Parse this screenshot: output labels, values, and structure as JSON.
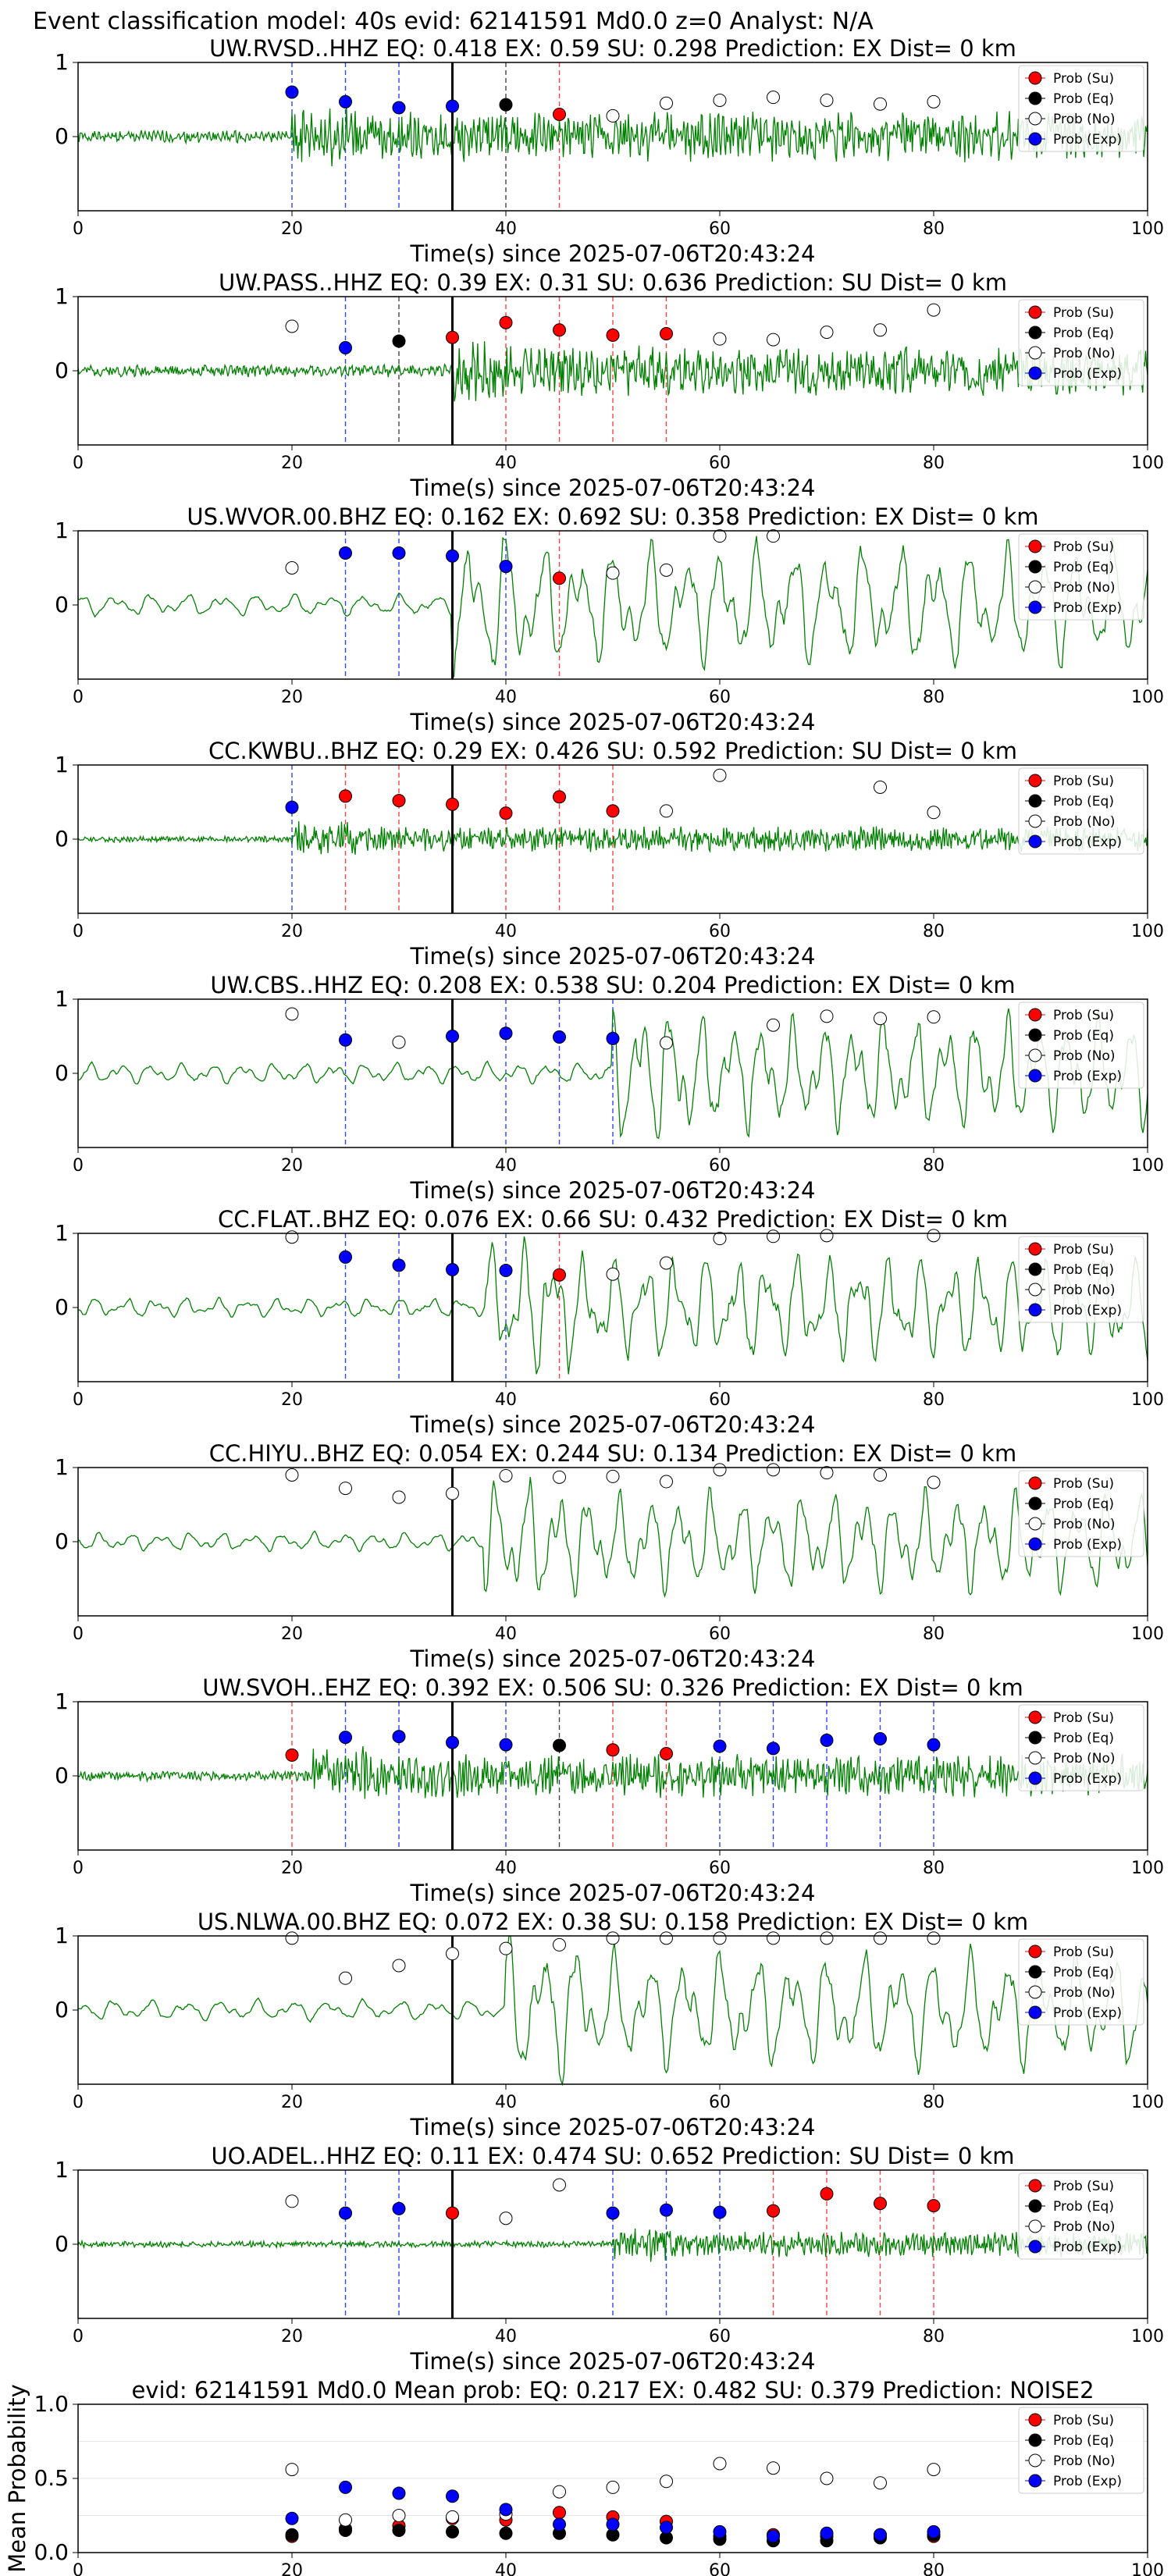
{
  "figure_title": "Event classification model: 40s evid: 62141591 Md0.0 z=0 Analyst: N/A",
  "legend_labels": [
    "Prob (Su)",
    "Prob (Eq)",
    "Prob (No)",
    "Prob (Exp)"
  ],
  "colors": {
    "su": "#ff0000",
    "eq": "#000000",
    "no": "#ffffff",
    "exp": "#0000ff",
    "trace": "#008000",
    "pick": "#000000"
  },
  "chart_data": [
    {
      "type": "line",
      "station": "UW.RVSD..HHZ",
      "title": "UW.RVSD..HHZ   EQ: 0.418  EX: 0.59  SU: 0.298   Prediction: EX    Dist= 0 km",
      "xlabel": "Time(s) since 2025-07-06T20:43:24",
      "xlim": [
        0,
        100
      ],
      "ylim": [
        -1,
        1
      ],
      "x_ticks": [
        "0",
        "20",
        "40",
        "60",
        "80",
        "100"
      ],
      "y_ticks": [
        "1",
        "0"
      ],
      "pick_time": 35,
      "waveform": {
        "style": "hf",
        "amp": 0.35,
        "onset": 20,
        "freq": 2.5,
        "seed": 1
      },
      "points": [
        {
          "t": 20,
          "cls": "exp",
          "p": 0.6
        },
        {
          "t": 25,
          "cls": "exp",
          "p": 0.47
        },
        {
          "t": 30,
          "cls": "exp",
          "p": 0.39
        },
        {
          "t": 35,
          "cls": "exp",
          "p": 0.41
        },
        {
          "t": 40,
          "cls": "eq",
          "p": 0.43
        },
        {
          "t": 45,
          "cls": "su",
          "p": 0.3
        },
        {
          "t": 50,
          "cls": "no",
          "p": 0.28
        },
        {
          "t": 55,
          "cls": "no",
          "p": 0.45
        },
        {
          "t": 60,
          "cls": "no",
          "p": 0.49
        },
        {
          "t": 65,
          "cls": "no",
          "p": 0.53
        },
        {
          "t": 70,
          "cls": "no",
          "p": 0.49
        },
        {
          "t": 75,
          "cls": "no",
          "p": 0.44
        },
        {
          "t": 80,
          "cls": "no",
          "p": 0.47
        }
      ]
    },
    {
      "type": "line",
      "station": "UW.PASS..HHZ",
      "title": "UW.PASS..HHZ   EQ: 0.39  EX: 0.31  SU: 0.636   Prediction: SU    Dist= 0 km",
      "xlabel": "Time(s) since 2025-07-06T20:43:24",
      "xlim": [
        0,
        100
      ],
      "ylim": [
        -1,
        1
      ],
      "x_ticks": [
        "0",
        "20",
        "40",
        "60",
        "80",
        "100"
      ],
      "y_ticks": [
        "1",
        "0"
      ],
      "pick_time": 35,
      "waveform": {
        "style": "hf",
        "amp": 0.35,
        "onset": 35,
        "freq": 1.6,
        "seed": 2
      },
      "points": [
        {
          "t": 20,
          "cls": "no",
          "p": 0.6
        },
        {
          "t": 25,
          "cls": "exp",
          "p": 0.31
        },
        {
          "t": 30,
          "cls": "eq",
          "p": 0.4
        },
        {
          "t": 35,
          "cls": "su",
          "p": 0.45
        },
        {
          "t": 40,
          "cls": "su",
          "p": 0.65
        },
        {
          "t": 45,
          "cls": "su",
          "p": 0.55
        },
        {
          "t": 50,
          "cls": "su",
          "p": 0.48
        },
        {
          "t": 55,
          "cls": "su",
          "p": 0.5
        },
        {
          "t": 60,
          "cls": "no",
          "p": 0.43
        },
        {
          "t": 65,
          "cls": "no",
          "p": 0.42
        },
        {
          "t": 70,
          "cls": "no",
          "p": 0.52
        },
        {
          "t": 75,
          "cls": "no",
          "p": 0.55
        },
        {
          "t": 80,
          "cls": "no",
          "p": 0.82
        }
      ]
    },
    {
      "type": "line",
      "station": "US.WVOR.00.BHZ",
      "title": "US.WVOR.00.BHZ   EQ: 0.162  EX: 0.692  SU: 0.358   Prediction: EX    Dist= 0 km",
      "xlabel": "Time(s) since 2025-07-06T20:43:24",
      "xlim": [
        0,
        100
      ],
      "ylim": [
        -1,
        1
      ],
      "x_ticks": [
        "0",
        "20",
        "40",
        "60",
        "80",
        "100"
      ],
      "y_ticks": [
        "1",
        "0"
      ],
      "pick_time": 35,
      "waveform": {
        "style": "lf",
        "amp": 0.9,
        "onset": 35,
        "freq": 0.3,
        "seed": 3
      },
      "points": [
        {
          "t": 20,
          "cls": "no",
          "p": 0.5
        },
        {
          "t": 25,
          "cls": "exp",
          "p": 0.7
        },
        {
          "t": 30,
          "cls": "exp",
          "p": 0.7
        },
        {
          "t": 35,
          "cls": "exp",
          "p": 0.66
        },
        {
          "t": 40,
          "cls": "exp",
          "p": 0.52
        },
        {
          "t": 45,
          "cls": "su",
          "p": 0.36
        },
        {
          "t": 50,
          "cls": "no",
          "p": 0.43
        },
        {
          "t": 55,
          "cls": "no",
          "p": 0.47
        },
        {
          "t": 60,
          "cls": "no",
          "p": 0.93
        },
        {
          "t": 65,
          "cls": "no",
          "p": 0.93
        }
      ]
    },
    {
      "type": "line",
      "station": "CC.KWBU..BHZ",
      "title": "CC.KWBU..BHZ   EQ: 0.29  EX: 0.426  SU: 0.592   Prediction: SU    Dist= 0 km",
      "xlabel": "Time(s) since 2025-07-06T20:43:24",
      "xlim": [
        0,
        100
      ],
      "ylim": [
        -1,
        1
      ],
      "x_ticks": [
        "0",
        "20",
        "40",
        "60",
        "80",
        "100"
      ],
      "y_ticks": [
        "1",
        "0"
      ],
      "pick_time": 35,
      "waveform": {
        "style": "hf",
        "amp": 0.18,
        "onset": 20,
        "freq": 3.5,
        "seed": 4
      },
      "points": [
        {
          "t": 20,
          "cls": "exp",
          "p": 0.43
        },
        {
          "t": 25,
          "cls": "su",
          "p": 0.58
        },
        {
          "t": 30,
          "cls": "su",
          "p": 0.52
        },
        {
          "t": 35,
          "cls": "su",
          "p": 0.47
        },
        {
          "t": 40,
          "cls": "su",
          "p": 0.35
        },
        {
          "t": 45,
          "cls": "su",
          "p": 0.57
        },
        {
          "t": 50,
          "cls": "su",
          "p": 0.38
        },
        {
          "t": 55,
          "cls": "no",
          "p": 0.38
        },
        {
          "t": 60,
          "cls": "no",
          "p": 0.86
        },
        {
          "t": 75,
          "cls": "no",
          "p": 0.7
        },
        {
          "t": 80,
          "cls": "no",
          "p": 0.36
        }
      ]
    },
    {
      "type": "line",
      "station": "UW.CBS..HHZ",
      "title": "UW.CBS..HHZ   EQ: 0.208  EX: 0.538  SU: 0.204   Prediction: EX    Dist= 0 km",
      "xlabel": "Time(s) since 2025-07-06T20:43:24",
      "xlim": [
        0,
        100
      ],
      "ylim": [
        -1,
        1
      ],
      "x_ticks": [
        "0",
        "20",
        "40",
        "60",
        "80",
        "100"
      ],
      "y_ticks": [
        "1",
        "0"
      ],
      "pick_time": 35,
      "waveform": {
        "style": "lf",
        "amp": 0.85,
        "onset": 50,
        "freq": 0.35,
        "seed": 5
      },
      "points": [
        {
          "t": 20,
          "cls": "no",
          "p": 0.8
        },
        {
          "t": 25,
          "cls": "exp",
          "p": 0.45
        },
        {
          "t": 30,
          "cls": "no",
          "p": 0.42
        },
        {
          "t": 35,
          "cls": "exp",
          "p": 0.5
        },
        {
          "t": 40,
          "cls": "exp",
          "p": 0.54
        },
        {
          "t": 45,
          "cls": "exp",
          "p": 0.49
        },
        {
          "t": 50,
          "cls": "exp",
          "p": 0.47
        },
        {
          "t": 55,
          "cls": "no",
          "p": 0.41
        },
        {
          "t": 65,
          "cls": "no",
          "p": 0.65
        },
        {
          "t": 70,
          "cls": "no",
          "p": 0.77
        },
        {
          "t": 75,
          "cls": "no",
          "p": 0.74
        },
        {
          "t": 80,
          "cls": "no",
          "p": 0.76
        }
      ]
    },
    {
      "type": "line",
      "station": "CC.FLAT..BHZ",
      "title": "CC.FLAT..BHZ   EQ: 0.076  EX: 0.66  SU: 0.432   Prediction: EX    Dist= 0 km",
      "xlabel": "Time(s) since 2025-07-06T20:43:24",
      "xlim": [
        0,
        100
      ],
      "ylim": [
        -1,
        1
      ],
      "x_ticks": [
        "0",
        "20",
        "40",
        "60",
        "80",
        "100"
      ],
      "y_ticks": [
        "1",
        "0"
      ],
      "pick_time": 35,
      "waveform": {
        "style": "lf",
        "amp": 0.8,
        "onset": 38,
        "freq": 0.35,
        "seed": 6
      },
      "points": [
        {
          "t": 20,
          "cls": "no",
          "p": 0.95
        },
        {
          "t": 25,
          "cls": "exp",
          "p": 0.68
        },
        {
          "t": 30,
          "cls": "exp",
          "p": 0.57
        },
        {
          "t": 35,
          "cls": "exp",
          "p": 0.51
        },
        {
          "t": 40,
          "cls": "exp",
          "p": 0.5
        },
        {
          "t": 45,
          "cls": "su",
          "p": 0.44
        },
        {
          "t": 50,
          "cls": "no",
          "p": 0.45
        },
        {
          "t": 55,
          "cls": "no",
          "p": 0.6
        },
        {
          "t": 60,
          "cls": "no",
          "p": 0.93
        },
        {
          "t": 65,
          "cls": "no",
          "p": 0.96
        },
        {
          "t": 70,
          "cls": "no",
          "p": 0.97
        },
        {
          "t": 80,
          "cls": "no",
          "p": 0.97
        }
      ]
    },
    {
      "type": "line",
      "station": "CC.HIYU..BHZ",
      "title": "CC.HIYU..BHZ   EQ: 0.054  EX: 0.244  SU: 0.134   Prediction: EX    Dist= 0 km",
      "xlabel": "Time(s) since 2025-07-06T20:43:24",
      "xlim": [
        0,
        100
      ],
      "ylim": [
        -1,
        1
      ],
      "x_ticks": [
        "0",
        "20",
        "40",
        "60",
        "80",
        "100"
      ],
      "y_ticks": [
        "1",
        "0"
      ],
      "pick_time": 35,
      "waveform": {
        "style": "lf",
        "amp": 0.75,
        "onset": 38,
        "freq": 0.35,
        "seed": 7
      },
      "points": [
        {
          "t": 20,
          "cls": "no",
          "p": 0.9
        },
        {
          "t": 25,
          "cls": "no",
          "p": 0.72
        },
        {
          "t": 30,
          "cls": "no",
          "p": 0.6
        },
        {
          "t": 35,
          "cls": "no",
          "p": 0.65
        },
        {
          "t": 40,
          "cls": "no",
          "p": 0.89
        },
        {
          "t": 45,
          "cls": "no",
          "p": 0.87
        },
        {
          "t": 50,
          "cls": "no",
          "p": 0.88
        },
        {
          "t": 55,
          "cls": "no",
          "p": 0.81
        },
        {
          "t": 60,
          "cls": "no",
          "p": 0.97
        },
        {
          "t": 65,
          "cls": "no",
          "p": 0.97
        },
        {
          "t": 70,
          "cls": "no",
          "p": 0.93
        },
        {
          "t": 75,
          "cls": "no",
          "p": 0.9
        },
        {
          "t": 80,
          "cls": "no",
          "p": 0.8
        }
      ]
    },
    {
      "type": "line",
      "station": "UW.SVOH..EHZ",
      "title": "UW.SVOH..EHZ   EQ: 0.392  EX: 0.506  SU: 0.326   Prediction: EX    Dist= 0 km",
      "xlabel": "Time(s) since 2025-07-06T20:43:24",
      "xlim": [
        0,
        100
      ],
      "ylim": [
        -1,
        1
      ],
      "x_ticks": [
        "0",
        "20",
        "40",
        "60",
        "80",
        "100"
      ],
      "y_ticks": [
        "1",
        "0"
      ],
      "pick_time": 35,
      "waveform": {
        "style": "hf",
        "amp": 0.3,
        "onset": 22,
        "freq": 3.0,
        "seed": 8
      },
      "points": [
        {
          "t": 20,
          "cls": "su",
          "p": 0.28
        },
        {
          "t": 25,
          "cls": "exp",
          "p": 0.52
        },
        {
          "t": 30,
          "cls": "exp",
          "p": 0.53
        },
        {
          "t": 35,
          "cls": "exp",
          "p": 0.45
        },
        {
          "t": 40,
          "cls": "exp",
          "p": 0.42
        },
        {
          "t": 45,
          "cls": "eq",
          "p": 0.41
        },
        {
          "t": 50,
          "cls": "su",
          "p": 0.35
        },
        {
          "t": 55,
          "cls": "su",
          "p": 0.3
        },
        {
          "t": 60,
          "cls": "exp",
          "p": 0.4
        },
        {
          "t": 65,
          "cls": "exp",
          "p": 0.37
        },
        {
          "t": 70,
          "cls": "exp",
          "p": 0.48
        },
        {
          "t": 75,
          "cls": "exp",
          "p": 0.5
        },
        {
          "t": 80,
          "cls": "exp",
          "p": 0.42
        }
      ]
    },
    {
      "type": "line",
      "station": "US.NLWA.00.BHZ",
      "title": "US.NLWA.00.BHZ   EQ: 0.072  EX: 0.38  SU: 0.158   Prediction: EX    Dist= 0 km",
      "xlabel": "Time(s) since 2025-07-06T20:43:24",
      "xlim": [
        0,
        100
      ],
      "ylim": [
        -1,
        1
      ],
      "x_ticks": [
        "0",
        "20",
        "40",
        "60",
        "80",
        "100"
      ],
      "y_ticks": [
        "1",
        "0"
      ],
      "pick_time": 35,
      "waveform": {
        "style": "lf",
        "amp": 0.85,
        "onset": 40,
        "freq": 0.3,
        "seed": 9
      },
      "points": [
        {
          "t": 20,
          "cls": "no",
          "p": 0.97
        },
        {
          "t": 25,
          "cls": "no",
          "p": 0.43
        },
        {
          "t": 30,
          "cls": "no",
          "p": 0.6
        },
        {
          "t": 35,
          "cls": "no",
          "p": 0.76
        },
        {
          "t": 40,
          "cls": "no",
          "p": 0.83
        },
        {
          "t": 45,
          "cls": "no",
          "p": 0.88
        },
        {
          "t": 50,
          "cls": "no",
          "p": 0.97
        },
        {
          "t": 55,
          "cls": "no",
          "p": 0.97
        },
        {
          "t": 60,
          "cls": "no",
          "p": 0.97
        },
        {
          "t": 65,
          "cls": "no",
          "p": 0.97
        },
        {
          "t": 70,
          "cls": "no",
          "p": 0.97
        },
        {
          "t": 75,
          "cls": "no",
          "p": 0.97
        },
        {
          "t": 80,
          "cls": "no",
          "p": 0.97
        }
      ]
    },
    {
      "type": "line",
      "station": "UO.ADEL..HHZ",
      "title": "UO.ADEL..HHZ   EQ: 0.11  EX: 0.474  SU: 0.652   Prediction: SU    Dist= 0 km",
      "xlabel": "Time(s) since 2025-07-06T20:43:24",
      "xlim": [
        0,
        100
      ],
      "ylim": [
        -1,
        1
      ],
      "x_ticks": [
        "0",
        "20",
        "40",
        "60",
        "80",
        "100"
      ],
      "y_ticks": [
        "1",
        "0"
      ],
      "pick_time": 35,
      "waveform": {
        "style": "hf",
        "amp": 0.18,
        "onset": 50,
        "freq": 3.0,
        "seed": 10
      },
      "points": [
        {
          "t": 20,
          "cls": "no",
          "p": 0.58
        },
        {
          "t": 25,
          "cls": "exp",
          "p": 0.42
        },
        {
          "t": 30,
          "cls": "exp",
          "p": 0.48
        },
        {
          "t": 35,
          "cls": "su",
          "p": 0.42
        },
        {
          "t": 40,
          "cls": "no",
          "p": 0.35
        },
        {
          "t": 45,
          "cls": "no",
          "p": 0.8
        },
        {
          "t": 50,
          "cls": "exp",
          "p": 0.42
        },
        {
          "t": 55,
          "cls": "exp",
          "p": 0.46
        },
        {
          "t": 60,
          "cls": "exp",
          "p": 0.43
        },
        {
          "t": 65,
          "cls": "su",
          "p": 0.45
        },
        {
          "t": 70,
          "cls": "su",
          "p": 0.68
        },
        {
          "t": 75,
          "cls": "su",
          "p": 0.55
        },
        {
          "t": 80,
          "cls": "su",
          "p": 0.52
        }
      ]
    },
    {
      "type": "scatter",
      "station": "mean",
      "title": "evid: 62141591  Md0.0  Mean prob:   EQ: 0.217  EX: 0.482  SU: 0.379   Prediction: NOISE2",
      "ylabel": "Mean Probability",
      "xlim": [
        0,
        100
      ],
      "ylim": [
        0,
        1
      ],
      "x_ticks": [
        "0",
        "20",
        "40",
        "60",
        "80",
        "100"
      ],
      "y_ticks": [
        "1.0",
        "0.5",
        "0.0"
      ],
      "series": [
        {
          "name": "Prob (Su)",
          "cls": "su",
          "x": [
            20,
            25,
            30,
            35,
            40,
            45,
            50,
            55,
            60,
            65,
            70,
            75,
            80
          ],
          "y": [
            0.11,
            0.16,
            0.18,
            0.23,
            0.22,
            0.27,
            0.24,
            0.21,
            0.11,
            0.12,
            0.11,
            0.12,
            0.11
          ]
        },
        {
          "name": "Prob (Eq)",
          "cls": "eq",
          "x": [
            20,
            25,
            30,
            35,
            40,
            45,
            50,
            55,
            60,
            65,
            70,
            75,
            80
          ],
          "y": [
            0.12,
            0.15,
            0.15,
            0.14,
            0.13,
            0.13,
            0.12,
            0.1,
            0.09,
            0.08,
            0.08,
            0.1,
            0.12
          ]
        },
        {
          "name": "Prob (No)",
          "cls": "no",
          "x": [
            20,
            25,
            30,
            35,
            40,
            45,
            50,
            55,
            60,
            65,
            70,
            75,
            80
          ],
          "y": [
            0.56,
            0.22,
            0.25,
            0.24,
            0.26,
            0.41,
            0.44,
            0.48,
            0.6,
            0.57,
            0.5,
            0.47,
            0.56
          ]
        },
        {
          "name": "Prob (Exp)",
          "cls": "exp",
          "x": [
            20,
            25,
            30,
            35,
            40,
            45,
            50,
            55,
            60,
            65,
            70,
            75,
            80
          ],
          "y": [
            0.23,
            0.44,
            0.4,
            0.38,
            0.29,
            0.19,
            0.19,
            0.17,
            0.14,
            0.11,
            0.13,
            0.12,
            0.14
          ]
        }
      ]
    }
  ]
}
